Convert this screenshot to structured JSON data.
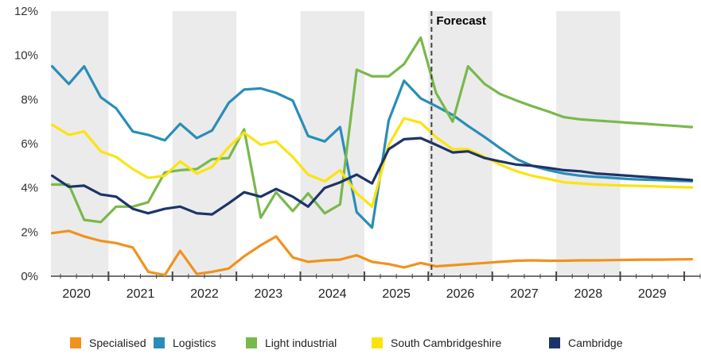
{
  "chart_data": {
    "type": "line",
    "title": "",
    "xlabel": "",
    "ylabel": "",
    "ylim": [
      0,
      12
    ],
    "x_range": [
      2019.6,
      2029.75
    ],
    "y_ticks": [
      0,
      2,
      4,
      6,
      8,
      10,
      12
    ],
    "y_tick_labels": [
      "0%",
      "2%",
      "4%",
      "6%",
      "8%",
      "10%",
      "12%"
    ],
    "x_tick_labels": [
      "2020",
      "2021",
      "2022",
      "2023",
      "2024",
      "2025",
      "2026",
      "2027",
      "2028",
      "2029"
    ],
    "x_year_bands": [
      2020,
      2021,
      2022,
      2023,
      2024,
      2025,
      2026,
      2027,
      2028,
      2029
    ],
    "grid": false,
    "shaded_alternate_years": true,
    "legend_position": "bottom",
    "forecast": {
      "label": "Forecast",
      "x": 2025.55
    },
    "series": [
      {
        "name": "Specialised",
        "color": "#F0921E",
        "x": [
          2019.62,
          2019.88,
          2020.12,
          2020.38,
          2020.62,
          2020.88,
          2021.12,
          2021.38,
          2021.62,
          2021.88,
          2022.12,
          2022.38,
          2022.62,
          2022.88,
          2023.12,
          2023.38,
          2023.62,
          2023.88,
          2024.12,
          2024.38,
          2024.62,
          2024.88,
          2025.12,
          2025.38,
          2025.62,
          2025.88,
          2026.12,
          2026.38,
          2026.62,
          2026.88,
          2027.12,
          2027.38,
          2027.62,
          2027.88,
          2028.12,
          2028.38,
          2028.62,
          2028.88,
          2029.12,
          2029.38,
          2029.62
        ],
        "values": [
          1.95,
          2.05,
          1.8,
          1.6,
          1.5,
          1.3,
          0.2,
          0.05,
          1.15,
          0.1,
          0.2,
          0.35,
          0.9,
          1.4,
          1.8,
          0.85,
          0.65,
          0.72,
          0.75,
          0.95,
          0.65,
          0.55,
          0.4,
          0.6,
          0.45,
          0.5,
          0.55,
          0.6,
          0.65,
          0.7,
          0.72,
          0.7,
          0.7,
          0.72,
          0.72,
          0.73,
          0.74,
          0.75,
          0.75,
          0.76,
          0.77
        ]
      },
      {
        "name": "Logistics",
        "color": "#2A8DB8",
        "x": [
          2019.62,
          2019.88,
          2020.12,
          2020.38,
          2020.62,
          2020.88,
          2021.12,
          2021.38,
          2021.62,
          2021.88,
          2022.12,
          2022.38,
          2022.62,
          2022.88,
          2023.12,
          2023.38,
          2023.62,
          2023.88,
          2024.12,
          2024.38,
          2024.62,
          2024.88,
          2025.12,
          2025.38,
          2025.62,
          2025.88,
          2026.12,
          2026.38,
          2026.62,
          2026.88,
          2027.12,
          2027.38,
          2027.62,
          2027.88,
          2028.12,
          2028.38,
          2028.62,
          2028.88,
          2029.12,
          2029.38,
          2029.62
        ],
        "values": [
          9.5,
          8.7,
          9.5,
          8.1,
          7.6,
          6.55,
          6.4,
          6.15,
          6.9,
          6.25,
          6.6,
          7.85,
          8.45,
          8.5,
          8.3,
          7.95,
          6.35,
          6.1,
          6.75,
          2.9,
          2.2,
          7.05,
          8.85,
          8.05,
          7.7,
          7.3,
          6.8,
          6.3,
          5.8,
          5.3,
          5.0,
          4.8,
          4.65,
          4.55,
          4.5,
          4.45,
          4.4,
          4.37,
          4.35,
          4.32,
          4.3
        ]
      },
      {
        "name": "Light industrial",
        "color": "#79B94C",
        "x": [
          2019.62,
          2019.88,
          2020.12,
          2020.38,
          2020.62,
          2020.88,
          2021.12,
          2021.38,
          2021.62,
          2021.88,
          2022.12,
          2022.38,
          2022.62,
          2022.88,
          2023.12,
          2023.38,
          2023.62,
          2023.88,
          2024.12,
          2024.38,
          2024.62,
          2024.88,
          2025.12,
          2025.38,
          2025.62,
          2025.88,
          2026.12,
          2026.38,
          2026.62,
          2026.88,
          2027.12,
          2027.38,
          2027.62,
          2027.88,
          2028.12,
          2028.38,
          2028.62,
          2028.88,
          2029.12,
          2029.38,
          2029.62
        ],
        "values": [
          4.15,
          4.15,
          2.55,
          2.45,
          3.15,
          3.15,
          3.35,
          4.7,
          4.8,
          4.85,
          5.3,
          5.35,
          6.65,
          2.65,
          3.8,
          2.95,
          3.75,
          2.85,
          3.25,
          9.35,
          9.05,
          9.05,
          9.6,
          10.8,
          8.3,
          7.0,
          9.5,
          8.7,
          8.25,
          7.95,
          7.7,
          7.45,
          7.2,
          7.1,
          7.05,
          7.0,
          6.95,
          6.9,
          6.85,
          6.8,
          6.75
        ]
      },
      {
        "name": "South Cambridgeshire",
        "color": "#FCE30F",
        "x": [
          2019.62,
          2019.88,
          2020.12,
          2020.38,
          2020.62,
          2020.88,
          2021.12,
          2021.38,
          2021.62,
          2021.88,
          2022.12,
          2022.38,
          2022.62,
          2022.88,
          2023.12,
          2023.38,
          2023.62,
          2023.88,
          2024.12,
          2024.38,
          2024.62,
          2024.88,
          2025.12,
          2025.38,
          2025.62,
          2025.88,
          2026.12,
          2026.38,
          2026.62,
          2026.88,
          2027.12,
          2027.38,
          2027.62,
          2027.88,
          2028.12,
          2028.38,
          2028.62,
          2028.88,
          2029.12,
          2029.38,
          2029.62
        ],
        "values": [
          6.85,
          6.4,
          6.55,
          5.65,
          5.4,
          4.85,
          4.45,
          4.55,
          5.2,
          4.65,
          4.95,
          5.85,
          6.5,
          5.95,
          6.1,
          5.4,
          4.6,
          4.3,
          4.8,
          3.75,
          3.15,
          5.95,
          7.15,
          6.95,
          6.3,
          5.75,
          5.75,
          5.4,
          5.05,
          4.75,
          4.55,
          4.4,
          4.25,
          4.2,
          4.15,
          4.12,
          4.1,
          4.08,
          4.06,
          4.04,
          4.02
        ]
      },
      {
        "name": "Cambridge",
        "color": "#1D3468",
        "x": [
          2019.62,
          2019.88,
          2020.12,
          2020.38,
          2020.62,
          2020.88,
          2021.12,
          2021.38,
          2021.62,
          2021.88,
          2022.12,
          2022.38,
          2022.62,
          2022.88,
          2023.12,
          2023.38,
          2023.62,
          2023.88,
          2024.12,
          2024.38,
          2024.62,
          2024.88,
          2025.12,
          2025.38,
          2025.62,
          2025.88,
          2026.12,
          2026.38,
          2026.62,
          2026.88,
          2027.12,
          2027.38,
          2027.62,
          2027.88,
          2028.12,
          2028.38,
          2028.62,
          2028.88,
          2029.12,
          2029.38,
          2029.62
        ],
        "values": [
          4.55,
          4.05,
          4.1,
          3.7,
          3.6,
          3.05,
          2.85,
          3.05,
          3.15,
          2.85,
          2.8,
          3.3,
          3.8,
          3.6,
          3.95,
          3.6,
          3.15,
          4.0,
          4.25,
          4.6,
          4.2,
          5.75,
          6.2,
          6.25,
          5.95,
          5.6,
          5.65,
          5.35,
          5.2,
          5.05,
          5.0,
          4.9,
          4.8,
          4.75,
          4.65,
          4.6,
          4.55,
          4.5,
          4.45,
          4.4,
          4.35
        ]
      }
    ]
  }
}
